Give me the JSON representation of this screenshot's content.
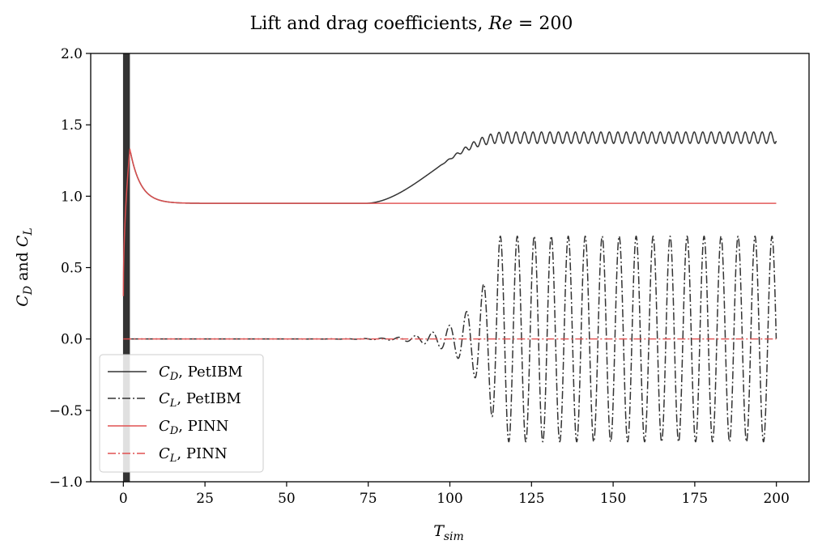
{
  "chart_data": {
    "type": "line",
    "title": "Lift and drag coefficients, ",
    "title_math": "Re",
    "title_suffix": " = 200",
    "xlabel_base": "T",
    "xlabel_sub": "sim",
    "ylabel_parts": {
      "c1": "C",
      "s1": "D",
      "mid": " and ",
      "c2": "C",
      "s2": "L"
    },
    "xlim": [
      -10,
      210
    ],
    "ylim": [
      -1.0,
      2.0
    ],
    "xticks": [
      0,
      25,
      50,
      75,
      100,
      125,
      150,
      175,
      200
    ],
    "xtick_labels": [
      "0",
      "25",
      "50",
      "75",
      "100",
      "125",
      "150",
      "175",
      "200"
    ],
    "yticks": [
      -1.0,
      -0.5,
      0.0,
      0.5,
      1.0,
      1.5,
      2.0
    ],
    "ytick_labels": [
      "−1.0",
      "−0.5",
      "0.0",
      "0.5",
      "1.0",
      "1.5",
      "2.0"
    ],
    "legend_position": "lower-left",
    "colors": {
      "petibm": "#333333",
      "pinn": "#e15050",
      "band": "#333333"
    },
    "series": [
      {
        "name": "CD_PetIBM",
        "label_base": "C",
        "label_sub": "D",
        "label_tail": ", PetIBM",
        "style": "solid",
        "color": "#333333",
        "model": "drag_petibm",
        "description": "Drag settles near 0.955, rises after t=75 to a mean of 1.41 with amplitude 0.04 oscillation (period ~2.6)"
      },
      {
        "name": "CL_PetIBM",
        "label_base": "C",
        "label_sub": "L",
        "label_tail": ", PetIBM",
        "style": "dashdot",
        "color": "#333333",
        "model": "lift_petibm",
        "description": "Lift near 0 until t~80, grows to amplitude 0.72 by t~115 (period ~5.2)"
      },
      {
        "name": "CD_PINN",
        "label_base": "C",
        "label_sub": "D",
        "label_tail": ", PINN",
        "style": "solid",
        "color": "#e15050",
        "model": "drag_pinn",
        "description": "Starts 0.3, peaks 1.33 at t~2, decays to ~0.95 and stays flat"
      },
      {
        "name": "CL_PINN",
        "label_base": "C",
        "label_sub": "L",
        "label_tail": ", PINN",
        "style": "dashdot",
        "color": "#e15050",
        "model": "lift_pinn",
        "description": "Flat at 0.0"
      }
    ],
    "key_points": {
      "drag_early_peak": {
        "t": 2,
        "cd_pinn": 1.33
      },
      "drag_plateau": 0.955,
      "drag_final_mean": 1.41,
      "drag_final_amplitude": 0.04,
      "lift_final_amplitude": 0.72,
      "lift_onset_t": 80,
      "oscillation_band_t": [
        0,
        2
      ]
    }
  }
}
